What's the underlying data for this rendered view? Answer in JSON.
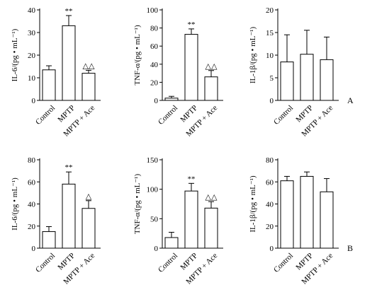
{
  "categories": [
    "Control",
    "MPTP",
    "MPTP + Ace"
  ],
  "row_labels": [
    "A",
    "B"
  ],
  "chart_data": [
    {
      "type": "bar",
      "row": 0,
      "col": 0,
      "ylabel": "IL-6/(pg • mL⁻¹)",
      "categories": [
        "Control",
        "MPTP",
        "MPTP + Ace"
      ],
      "values": [
        13.5,
        33,
        12
      ],
      "errors": [
        1.8,
        4.5,
        1.3
      ],
      "annotations": [
        "",
        "**",
        "△△"
      ],
      "ylim": [
        0,
        40
      ],
      "ticks": [
        0,
        10,
        20,
        30,
        40
      ]
    },
    {
      "type": "bar",
      "row": 0,
      "col": 1,
      "ylabel": "TNF-α/(pg • mL⁻¹)",
      "categories": [
        "Control",
        "MPTP",
        "MPTP + Ace"
      ],
      "values": [
        2.5,
        73,
        26
      ],
      "errors": [
        2,
        6,
        7
      ],
      "annotations": [
        "",
        "**",
        "△△"
      ],
      "ylim": [
        0,
        100
      ],
      "ticks": [
        0,
        20,
        40,
        60,
        80,
        100
      ]
    },
    {
      "type": "bar",
      "row": 0,
      "col": 2,
      "ylabel": "IL-1β/(pg • mL⁻¹)",
      "categories": [
        "Control",
        "MPTP",
        "MPTP + Ace"
      ],
      "values": [
        8.5,
        10.2,
        9
      ],
      "errors": [
        6,
        5.3,
        5
      ],
      "annotations": [
        "",
        "",
        ""
      ],
      "ylim": [
        0,
        20
      ],
      "ticks": [
        0,
        5,
        10,
        15,
        20
      ]
    },
    {
      "type": "bar",
      "row": 1,
      "col": 0,
      "ylabel": "IL-6/(pg • mL⁻¹)",
      "categories": [
        "Control",
        "MPTP",
        "MPTP + Ace"
      ],
      "values": [
        15,
        58,
        36
      ],
      "errors": [
        4.5,
        11,
        7
      ],
      "annotations": [
        "",
        "**",
        "△"
      ],
      "ylim": [
        0,
        80
      ],
      "ticks": [
        0,
        20,
        40,
        60,
        80
      ]
    },
    {
      "type": "bar",
      "row": 1,
      "col": 1,
      "ylabel": "TNF-α/(pg • mL⁻¹)",
      "categories": [
        "Control",
        "MPTP",
        "MPTP + Ace"
      ],
      "values": [
        18,
        97,
        68
      ],
      "errors": [
        9,
        13,
        11
      ],
      "annotations": [
        "",
        "**",
        "△△"
      ],
      "ylim": [
        0,
        150
      ],
      "ticks": [
        0,
        50,
        100,
        150
      ]
    },
    {
      "type": "bar",
      "row": 1,
      "col": 2,
      "ylabel": "IL-1β/(pg • mL⁻¹)",
      "categories": [
        "Control",
        "MPTP",
        "MPTP + Ace"
      ],
      "values": [
        61,
        65,
        51
      ],
      "errors": [
        4,
        4,
        12
      ],
      "annotations": [
        "",
        "",
        ""
      ],
      "ylim": [
        0,
        80
      ],
      "ticks": [
        0,
        20,
        40,
        60,
        80
      ]
    }
  ]
}
